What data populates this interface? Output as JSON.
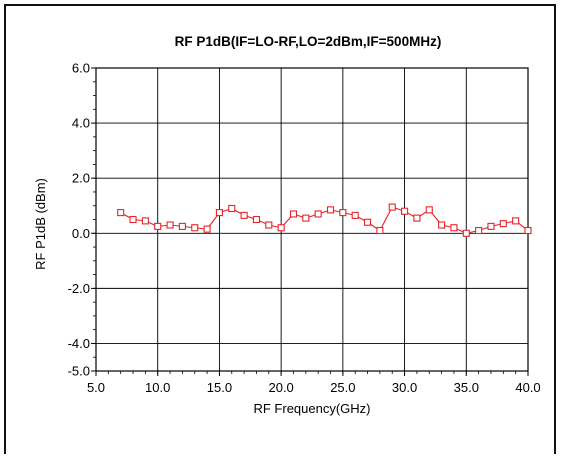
{
  "chart_data": {
    "type": "line",
    "title": "RF P1dB(IF=LO-RF,LO=2dBm,IF=500MHz)",
    "xlabel": "RF Frequency(GHz)",
    "ylabel": "RF P1dB (dBm)",
    "xlim": [
      5.0,
      40.0
    ],
    "ylim": [
      -5.0,
      6.0
    ],
    "x_ticks": [
      "5.0",
      "10.0",
      "15.0",
      "20.0",
      "25.0",
      "30.0",
      "35.0",
      "40.0"
    ],
    "y_ticks": [
      "6.0",
      "4.0",
      "2.0",
      "0.0",
      "-2.0",
      "-4.0",
      "-5.0"
    ],
    "grid": true,
    "series": [
      {
        "color": "#e8232a",
        "marker": "square",
        "x": [
          7,
          8,
          9,
          10,
          11,
          12,
          13,
          14,
          15,
          16,
          17,
          18,
          19,
          20,
          21,
          22,
          23,
          24,
          25,
          26,
          27,
          28,
          29,
          30,
          31,
          32,
          33,
          34,
          35,
          36,
          37,
          38,
          39,
          40
        ],
        "y": [
          0.75,
          0.5,
          0.45,
          0.25,
          0.3,
          0.25,
          0.2,
          0.15,
          0.75,
          0.9,
          0.65,
          0.5,
          0.3,
          0.2,
          0.7,
          0.55,
          0.7,
          0.85,
          0.75,
          0.65,
          0.4,
          0.1,
          0.95,
          0.8,
          0.55,
          0.85,
          0.3,
          0.2,
          0.0,
          0.1,
          0.25,
          0.35,
          0.45,
          0.1
        ]
      }
    ]
  }
}
